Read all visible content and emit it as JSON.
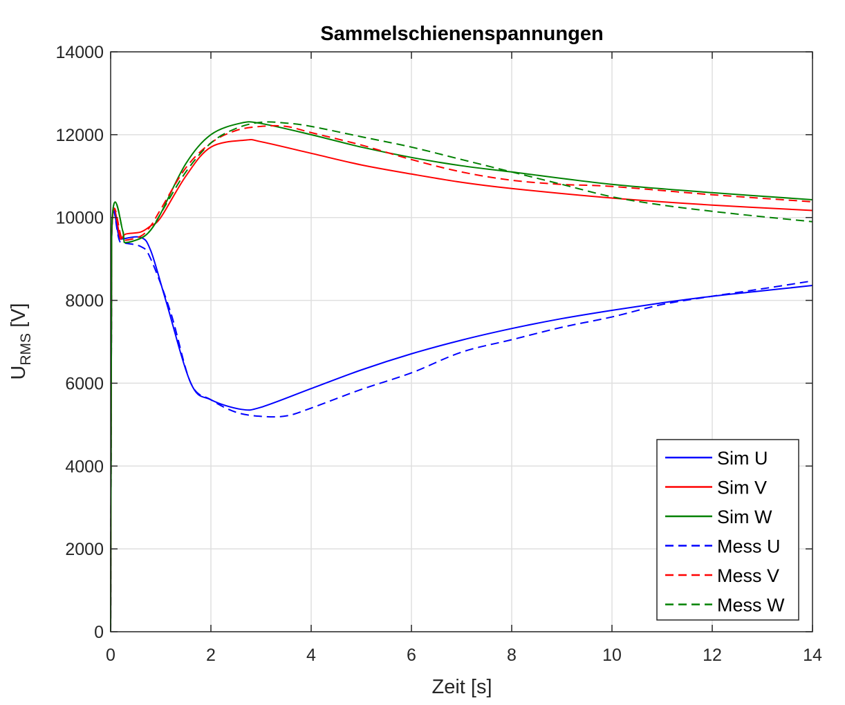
{
  "chart_data": {
    "type": "line",
    "title": "Sammelschienenspannungen",
    "xlabel": "Zeit [s]",
    "ylabel": {
      "main": "U",
      "subscript": "RMS",
      "unit": " [V]"
    },
    "xlim": [
      0,
      14
    ],
    "ylim": [
      0,
      14000
    ],
    "xticks": [
      0,
      2,
      4,
      6,
      8,
      10,
      12,
      14
    ],
    "yticks": [
      0,
      2000,
      4000,
      6000,
      8000,
      10000,
      12000,
      14000
    ],
    "grid": true,
    "legend_position": "bottom-right",
    "series": [
      {
        "name": "Sim U",
        "color": "#0000ff",
        "dash": "solid",
        "x": [
          0,
          0.02,
          0.2,
          0.6,
          0.8,
          1.1,
          1.6,
          2.0,
          2.6,
          3.0,
          4,
          5,
          6,
          7,
          8,
          9,
          10,
          11,
          12,
          13,
          14
        ],
        "y": [
          0,
          9500,
          9480,
          9520,
          9200,
          8000,
          6000,
          5600,
          5370,
          5420,
          5870,
          6320,
          6710,
          7040,
          7320,
          7560,
          7760,
          7940,
          8100,
          8230,
          8360
        ]
      },
      {
        "name": "Sim V",
        "color": "#ff0000",
        "dash": "solid",
        "x": [
          0,
          0.02,
          0.2,
          0.3,
          0.6,
          0.8,
          1.0,
          1.5,
          2.0,
          2.7,
          3.0,
          4,
          5,
          6,
          7,
          8,
          10,
          12,
          14
        ],
        "y": [
          0,
          9500,
          9480,
          9600,
          9650,
          9800,
          10000,
          11000,
          11700,
          11870,
          11830,
          11550,
          11270,
          11050,
          10850,
          10700,
          10470,
          10300,
          10170
        ]
      },
      {
        "name": "Sim W",
        "color": "#008000",
        "dash": "solid",
        "x": [
          0,
          0.02,
          0.25,
          0.27,
          0.6,
          0.8,
          1.0,
          1.5,
          2.0,
          2.6,
          3.0,
          4,
          5,
          6,
          7,
          8,
          10,
          12,
          14
        ],
        "y": [
          0,
          9650,
          9650,
          9400,
          9500,
          9700,
          10100,
          11300,
          12000,
          12280,
          12270,
          12000,
          11700,
          11450,
          11250,
          11100,
          10800,
          10600,
          10430
        ]
      },
      {
        "name": "Mess U",
        "color": "#0000ff",
        "dash": "dashed",
        "x": [
          0,
          0.02,
          0.2,
          0.6,
          0.8,
          1.2,
          1.6,
          2.0,
          2.5,
          3.0,
          3.5,
          4,
          5,
          6,
          7,
          8,
          9,
          10,
          11,
          12,
          13,
          14
        ],
        "y": [
          0,
          9500,
          9400,
          9300,
          9000,
          7700,
          6000,
          5600,
          5300,
          5200,
          5210,
          5400,
          5850,
          6250,
          6750,
          7050,
          7350,
          7600,
          7900,
          8100,
          8280,
          8470
        ]
      },
      {
        "name": "Mess V",
        "color": "#ff0000",
        "dash": "dashed",
        "x": [
          0,
          0.02,
          0.25,
          0.6,
          0.8,
          1.0,
          1.5,
          2.0,
          2.5,
          3.0,
          3.5,
          4,
          5,
          6,
          7,
          8,
          9,
          10,
          12,
          14
        ],
        "y": [
          0,
          9550,
          9450,
          9550,
          9800,
          10200,
          11200,
          11800,
          12100,
          12200,
          12200,
          12050,
          11750,
          11400,
          11100,
          10900,
          10800,
          10750,
          10550,
          10380
        ]
      },
      {
        "name": "Mess W",
        "color": "#008000",
        "dash": "dashed",
        "x": [
          0,
          0.02,
          0.25,
          0.27,
          0.6,
          0.8,
          1.0,
          1.5,
          2.0,
          2.5,
          3.0,
          3.5,
          4,
          5,
          6,
          7,
          8,
          9,
          10,
          11,
          12,
          13,
          14
        ],
        "y": [
          0,
          9650,
          9650,
          9400,
          9500,
          9700,
          10100,
          11100,
          11800,
          12150,
          12300,
          12280,
          12200,
          11950,
          11700,
          11400,
          11100,
          10800,
          10500,
          10300,
          10150,
          10020,
          9900
        ]
      }
    ]
  }
}
